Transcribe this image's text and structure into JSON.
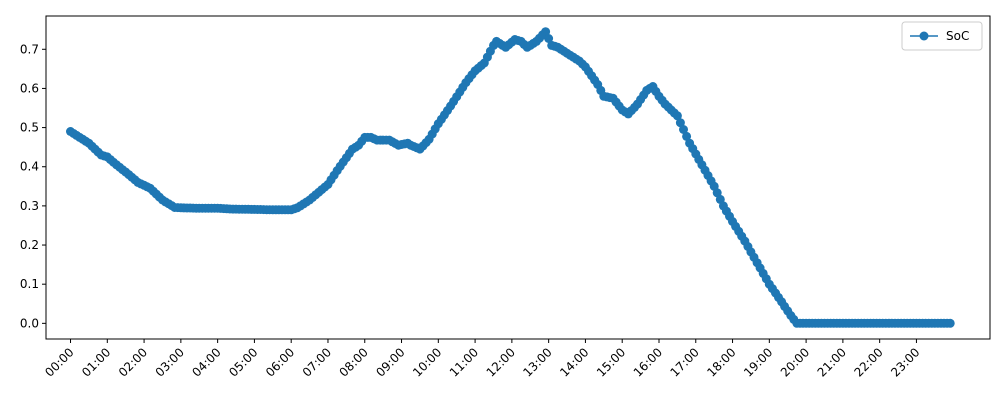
{
  "chart_data": {
    "type": "line",
    "series": [
      {
        "name": "SoC",
        "color": "#1f77b4",
        "marker": "circle",
        "points": [
          [
            "00:00",
            0.49
          ],
          [
            "00:30",
            0.46
          ],
          [
            "00:50",
            0.43
          ],
          [
            "01:00",
            0.425
          ],
          [
            "01:15",
            0.405
          ],
          [
            "01:35",
            0.38
          ],
          [
            "01:50",
            0.36
          ],
          [
            "02:10",
            0.345
          ],
          [
            "02:30",
            0.315
          ],
          [
            "02:50",
            0.296
          ],
          [
            "03:00",
            0.295
          ],
          [
            "03:30",
            0.294
          ],
          [
            "04:00",
            0.294
          ],
          [
            "04:20",
            0.292
          ],
          [
            "05:00",
            0.291
          ],
          [
            "05:30",
            0.29
          ],
          [
            "06:00",
            0.29
          ],
          [
            "06:10",
            0.295
          ],
          [
            "06:30",
            0.315
          ],
          [
            "07:00",
            0.355
          ],
          [
            "07:15",
            0.39
          ],
          [
            "07:40",
            0.445
          ],
          [
            "07:50",
            0.455
          ],
          [
            "08:00",
            0.475
          ],
          [
            "08:10",
            0.475
          ],
          [
            "08:20",
            0.468
          ],
          [
            "08:40",
            0.468
          ],
          [
            "08:55",
            0.455
          ],
          [
            "09:10",
            0.46
          ],
          [
            "09:15",
            0.455
          ],
          [
            "09:30",
            0.445
          ],
          [
            "09:45",
            0.47
          ],
          [
            "10:00",
            0.51
          ],
          [
            "10:20",
            0.555
          ],
          [
            "10:45",
            0.615
          ],
          [
            "11:00",
            0.645
          ],
          [
            "11:15",
            0.665
          ],
          [
            "11:30",
            0.71
          ],
          [
            "11:35",
            0.72
          ],
          [
            "11:50",
            0.705
          ],
          [
            "12:05",
            0.725
          ],
          [
            "12:15",
            0.72
          ],
          [
            "12:25",
            0.705
          ],
          [
            "12:40",
            0.72
          ],
          [
            "12:55",
            0.745
          ],
          [
            "13:05",
            0.71
          ],
          [
            "13:15",
            0.705
          ],
          [
            "13:30",
            0.69
          ],
          [
            "13:50",
            0.67
          ],
          [
            "14:00",
            0.655
          ],
          [
            "14:20",
            0.61
          ],
          [
            "14:30",
            0.58
          ],
          [
            "14:45",
            0.575
          ],
          [
            "15:00",
            0.545
          ],
          [
            "15:10",
            0.535
          ],
          [
            "15:25",
            0.56
          ],
          [
            "15:40",
            0.595
          ],
          [
            "15:50",
            0.605
          ],
          [
            "16:00",
            0.58
          ],
          [
            "16:10",
            0.56
          ],
          [
            "16:30",
            0.53
          ],
          [
            "16:50",
            0.46
          ],
          [
            "17:10",
            0.405
          ],
          [
            "17:30",
            0.35
          ],
          [
            "17:45",
            0.3
          ],
          [
            "18:00",
            0.26
          ],
          [
            "18:20",
            0.21
          ],
          [
            "18:40",
            0.155
          ],
          [
            "19:00",
            0.1
          ],
          [
            "19:20",
            0.055
          ],
          [
            "19:35",
            0.02
          ],
          [
            "19:45",
            0.0
          ],
          [
            "20:00",
            0.0
          ],
          [
            "21:00",
            0.0
          ],
          [
            "22:00",
            0.0
          ],
          [
            "23:00",
            0.0
          ],
          [
            "23:55",
            0.0
          ]
        ]
      }
    ],
    "x_ticks": [
      "00:00",
      "01:00",
      "02:00",
      "03:00",
      "04:00",
      "05:00",
      "06:00",
      "07:00",
      "08:00",
      "09:00",
      "10:00",
      "11:00",
      "12:00",
      "13:00",
      "14:00",
      "15:00",
      "16:00",
      "17:00",
      "18:00",
      "19:00",
      "20:00",
      "21:00",
      "22:00",
      "23:00"
    ],
    "y_ticks": [
      "0.0",
      "0.1",
      "0.2",
      "0.3",
      "0.4",
      "0.5",
      "0.6",
      "0.7"
    ],
    "xlim": [
      "-00:40",
      "25:00"
    ],
    "ylim": [
      -0.04,
      0.785
    ],
    "x_tick_rotation": 45,
    "legend_position": "top-right",
    "title": "",
    "xlabel": "",
    "ylabel": ""
  }
}
